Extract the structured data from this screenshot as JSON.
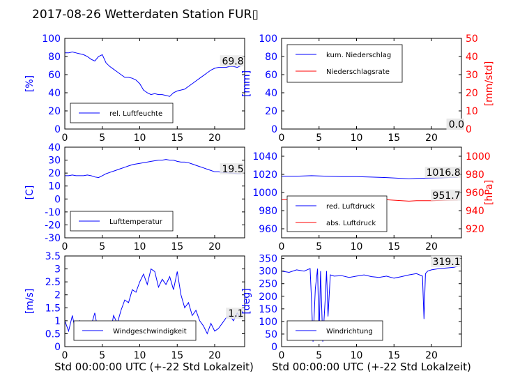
{
  "page": {
    "title": "2017-08-26 Wetterdaten Station FUR▯",
    "xlabel": "Std 00:00:00 UTC (+-22 Std Lokalzeit)"
  },
  "colors": {
    "primary": "#0000ff",
    "secondary": "#ff0000",
    "axis": "#000000",
    "secondary_axis": "#ff0000"
  },
  "chart_data": [
    {
      "id": "humidity",
      "type": "line",
      "xlim": [
        0,
        24
      ],
      "xticks": [
        0,
        5,
        10,
        15,
        20
      ],
      "ylim": [
        0,
        100
      ],
      "yticks": [
        0,
        20,
        40,
        60,
        80,
        100
      ],
      "ylabel": "[%]",
      "legend_position": "lower-left",
      "series": [
        {
          "name": "rel. Luftfeuchte",
          "color": "#0000ff",
          "last_value": "69.8",
          "x": [
            0,
            0.5,
            1,
            1.5,
            2,
            2.5,
            3,
            3.5,
            4,
            4.5,
            5,
            5.5,
            6,
            6.5,
            7,
            7.5,
            8,
            8.5,
            9,
            9.5,
            10,
            10.5,
            11,
            11.5,
            12,
            12.5,
            13,
            13.5,
            14,
            14.5,
            15,
            15.5,
            16,
            16.5,
            17,
            17.5,
            18,
            18.5,
            19,
            19.5,
            20,
            20.5,
            21,
            21.5,
            22,
            22.5,
            23,
            23.5
          ],
          "y": [
            84,
            84,
            85,
            84,
            83,
            82,
            80,
            77,
            75,
            80,
            82,
            73,
            69,
            66,
            63,
            60,
            57,
            57,
            56,
            54,
            50,
            43,
            40,
            38,
            39,
            38,
            38,
            37,
            36,
            40,
            42,
            43,
            44,
            47,
            50,
            53,
            56,
            59,
            62,
            65,
            67,
            68,
            68,
            68,
            69,
            69,
            68,
            69.8
          ]
        }
      ]
    },
    {
      "id": "precipitation",
      "type": "line",
      "xlim": [
        0,
        24
      ],
      "xticks": [
        0,
        5,
        10,
        15,
        20
      ],
      "ylim": [
        0,
        100
      ],
      "yticks": [
        0,
        20,
        40,
        60,
        80,
        100
      ],
      "ylabel": "[mm]",
      "y2lim": [
        0,
        50
      ],
      "y2ticks": [
        0,
        10,
        20,
        30,
        40,
        50
      ],
      "y2label": "[mm/std]",
      "legend_position": "upper-left",
      "series": [
        {
          "name": "kum. Niederschlag",
          "color": "#0000ff",
          "axis": "left",
          "last_value": "0.0",
          "x": [
            0,
            24
          ],
          "y": [
            0,
            0
          ]
        },
        {
          "name": "Niederschlagsrate",
          "color": "#ff0000",
          "axis": "right",
          "last_value": "0.0",
          "x": [
            0,
            24
          ],
          "y": [
            0,
            0
          ]
        }
      ]
    },
    {
      "id": "temperature",
      "type": "line",
      "xlim": [
        0,
        24
      ],
      "xticks": [
        0,
        5,
        10,
        15,
        20
      ],
      "ylim": [
        -30,
        40
      ],
      "yticks": [
        -30,
        -20,
        -10,
        0,
        10,
        20,
        30,
        40
      ],
      "ylabel": "[C]",
      "legend_position": "lower-left",
      "series": [
        {
          "name": "Lufttemperatur",
          "color": "#0000ff",
          "last_value": "19.5",
          "x": [
            0,
            0.5,
            1,
            1.5,
            2,
            2.5,
            3,
            3.5,
            4,
            4.5,
            5,
            5.5,
            6,
            6.5,
            7,
            7.5,
            8,
            8.5,
            9,
            9.5,
            10,
            10.5,
            11,
            11.5,
            12,
            12.5,
            13,
            13.5,
            14,
            14.5,
            15,
            15.5,
            16,
            16.5,
            17,
            17.5,
            18,
            18.5,
            19,
            19.5,
            20,
            20.5,
            21,
            21.5,
            22,
            22.5,
            23,
            23.5
          ],
          "y": [
            18,
            18,
            18.5,
            18,
            18,
            18,
            18.5,
            18,
            17,
            16.5,
            18,
            19.5,
            20.5,
            21.5,
            22.5,
            23.5,
            24.5,
            25.5,
            26.5,
            27,
            27.5,
            28,
            28.5,
            29,
            29.5,
            30,
            30,
            30.5,
            30,
            30,
            29,
            28.5,
            28.5,
            28,
            27,
            26,
            25,
            24,
            23,
            22,
            21,
            21,
            20.5,
            20.5,
            20,
            20,
            19.5,
            19.5
          ]
        }
      ]
    },
    {
      "id": "pressure",
      "type": "line",
      "xlim": [
        0,
        24
      ],
      "xticks": [
        0,
        5,
        10,
        15,
        20
      ],
      "ylim": [
        950,
        1050
      ],
      "yticks": [
        960,
        980,
        1000,
        1020,
        1040
      ],
      "y2lim": [
        910,
        1010
      ],
      "y2ticks": [
        920,
        940,
        960,
        980,
        1000
      ],
      "y2label": "[hPa]",
      "legend_position": "lower-left",
      "series": [
        {
          "name": "red. Luftdruck",
          "color": "#0000ff",
          "axis": "left",
          "last_value": "1016.8",
          "x": [
            0,
            2,
            4,
            6,
            8,
            10,
            12,
            14,
            16,
            17,
            18,
            20,
            22,
            23.5
          ],
          "y": [
            1018,
            1018,
            1018.5,
            1018,
            1017.5,
            1017.5,
            1017,
            1016.5,
            1015.5,
            1015,
            1015.5,
            1016,
            1016.5,
            1016.8
          ]
        },
        {
          "name": "abs. Luftdruck",
          "color": "#ff0000",
          "axis": "right",
          "last_value": "951.7",
          "x": [
            0,
            2,
            4,
            6,
            8,
            10,
            12,
            14,
            16,
            17,
            18,
            20,
            22,
            23.5
          ],
          "y": [
            952,
            952.5,
            953,
            953,
            953,
            953,
            952.5,
            952,
            951,
            950.5,
            951,
            951,
            951.5,
            951.7
          ]
        }
      ]
    },
    {
      "id": "windspeed",
      "type": "line",
      "xlim": [
        0,
        24
      ],
      "xticks": [
        0,
        5,
        10,
        15,
        20
      ],
      "ylim": [
        0,
        3.5
      ],
      "yticks": [
        0,
        0.5,
        1,
        1.5,
        2,
        2.5,
        3,
        3.5
      ],
      "ylabel": "[m/s]",
      "legend_position": "lower-center",
      "series": [
        {
          "name": "Windgeschwindigkeit",
          "color": "#0000ff",
          "last_value": "1.1",
          "x": [
            0,
            0.5,
            1,
            1.5,
            2,
            2.5,
            3,
            3.5,
            4,
            4.5,
            5,
            5.5,
            6,
            6.5,
            7,
            7.5,
            8,
            8.5,
            9,
            9.5,
            10,
            10.5,
            11,
            11.5,
            12,
            12.5,
            13,
            13.5,
            14,
            14.5,
            15,
            15.5,
            16,
            16.5,
            17,
            17.5,
            18,
            18.5,
            19,
            19.5,
            20,
            20.5,
            21,
            21.5,
            22,
            22.5,
            23,
            23.5
          ],
          "y": [
            1.0,
            0.6,
            1.2,
            0.5,
            1.0,
            0.8,
            0.6,
            0.8,
            1.3,
            0.5,
            0.3,
            0.7,
            0.4,
            1.2,
            0.9,
            1.4,
            1.8,
            1.7,
            2.2,
            2.1,
            2.5,
            2.8,
            2.4,
            3.0,
            2.9,
            2.3,
            2.6,
            2.4,
            2.7,
            2.2,
            2.9,
            2.0,
            1.5,
            1.7,
            1.2,
            1.4,
            1.0,
            0.8,
            0.5,
            0.9,
            0.6,
            0.7,
            0.9,
            1.1,
            1.2,
            1.0,
            1.3,
            1.1
          ]
        }
      ]
    },
    {
      "id": "winddirection",
      "type": "line",
      "xlim": [
        0,
        24
      ],
      "xticks": [
        0,
        5,
        10,
        15,
        20
      ],
      "ylim": [
        0,
        360
      ],
      "yticks": [
        0,
        50,
        100,
        150,
        200,
        250,
        300,
        350
      ],
      "ylabel": "[deg]",
      "legend_position": "lower-left",
      "series": [
        {
          "name": "Windrichtung",
          "color": "#0000ff",
          "last_value": "319.1",
          "x": [
            0,
            1,
            2,
            3,
            3.8,
            4,
            4.2,
            4.5,
            4.8,
            5,
            5.2,
            5.5,
            5.8,
            6,
            6.2,
            6.5,
            7,
            8,
            9,
            10,
            11,
            12,
            13,
            14,
            15,
            16,
            17,
            18,
            18.8,
            19,
            19.2,
            19.5,
            20,
            21,
            22,
            23,
            23.5
          ],
          "y": [
            300,
            295,
            305,
            300,
            310,
            180,
            20,
            230,
            310,
            40,
            300,
            20,
            180,
            300,
            120,
            285,
            280,
            282,
            275,
            280,
            285,
            278,
            275,
            280,
            272,
            278,
            285,
            290,
            280,
            110,
            290,
            300,
            305,
            310,
            312,
            315,
            319.1
          ]
        }
      ]
    }
  ]
}
